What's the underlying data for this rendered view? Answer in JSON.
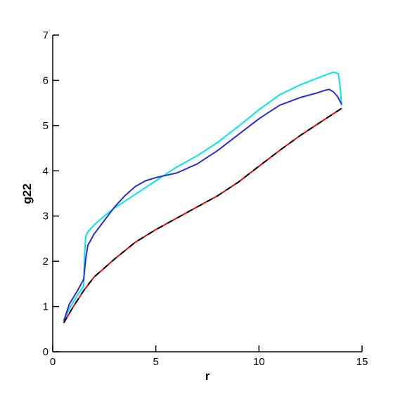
{
  "chart_data": {
    "type": "line",
    "xlabel": "r",
    "ylabel": "g22",
    "xlim": [
      0,
      15
    ],
    "ylim": [
      0,
      7
    ],
    "xticks": [
      0,
      5,
      10,
      15
    ],
    "yticks": [
      0,
      1,
      2,
      3,
      4,
      5,
      6,
      7
    ],
    "grid": false,
    "series": [
      {
        "color": "#00e5ee",
        "x": [
          0.55,
          0.8,
          1.2,
          1.5,
          1.55,
          1.6,
          1.7,
          2.0,
          2.5,
          3.0,
          3.5,
          4.0,
          4.5,
          5.0,
          5.5,
          6.0,
          7.0,
          8.0,
          9.0,
          10.0,
          11.0,
          12.0,
          13.0,
          13.6,
          13.85,
          13.95,
          14.0
        ],
        "y": [
          0.68,
          0.95,
          1.25,
          1.45,
          2.2,
          2.55,
          2.65,
          2.8,
          3.0,
          3.18,
          3.33,
          3.48,
          3.63,
          3.78,
          3.93,
          4.08,
          4.33,
          4.63,
          4.98,
          5.35,
          5.68,
          5.9,
          6.08,
          6.18,
          6.15,
          5.8,
          5.45
        ]
      },
      {
        "color": "#2b2bdd",
        "x": [
          0.55,
          0.8,
          1.2,
          1.5,
          1.6,
          1.7,
          2.0,
          2.5,
          3.0,
          3.5,
          4.0,
          4.5,
          5.0,
          5.5,
          6.0,
          7.0,
          8.0,
          9.0,
          10.0,
          11.0,
          12.0,
          12.8,
          13.2,
          13.4,
          13.6,
          13.8,
          14.0
        ],
        "y": [
          0.7,
          1.05,
          1.35,
          1.6,
          2.05,
          2.35,
          2.6,
          2.9,
          3.2,
          3.45,
          3.65,
          3.78,
          3.85,
          3.9,
          3.95,
          4.15,
          4.45,
          4.8,
          5.15,
          5.45,
          5.62,
          5.72,
          5.78,
          5.8,
          5.75,
          5.65,
          5.48
        ]
      },
      {
        "color": "#ff0000",
        "x": [
          0.55,
          1.0,
          1.5,
          2.0,
          3.0,
          4.0,
          5.0,
          6.0,
          7.0,
          8.0,
          9.0,
          10.0,
          11.0,
          12.0,
          13.0,
          14.0
        ],
        "y": [
          0.65,
          1.0,
          1.35,
          1.65,
          2.05,
          2.42,
          2.7,
          2.95,
          3.2,
          3.45,
          3.75,
          4.1,
          4.45,
          4.78,
          5.08,
          5.38
        ]
      },
      {
        "color": "#000000",
        "x": [
          0.55,
          1.0,
          1.5,
          2.0,
          3.0,
          4.0,
          5.0,
          6.0,
          7.0,
          8.0,
          9.0,
          10.0,
          11.0,
          12.0,
          13.0,
          14.0
        ],
        "y": [
          0.65,
          1.0,
          1.35,
          1.65,
          2.05,
          2.42,
          2.7,
          2.95,
          3.2,
          3.45,
          3.75,
          4.1,
          4.45,
          4.78,
          5.08,
          5.38
        ]
      }
    ]
  }
}
